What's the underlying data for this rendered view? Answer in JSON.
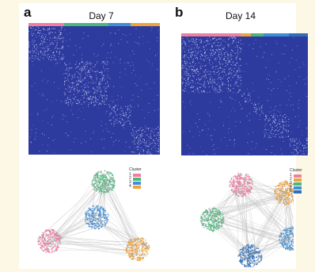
{
  "panels": [
    {
      "letter": "a",
      "title": "Day 7",
      "legend_title": "Cluster",
      "clusters": [
        {
          "label": "1",
          "color": "#ef7fa0"
        },
        {
          "label": "2",
          "color": "#4bb87a"
        },
        {
          "label": "3",
          "color": "#3f8fd6"
        },
        {
          "label": "4",
          "color": "#f2a23a"
        }
      ],
      "cluster_bar_fractions": [
        0.27,
        0.34,
        0.17,
        0.22
      ]
    },
    {
      "letter": "b",
      "title": "Day 14",
      "legend_title": "Cluster",
      "clusters": [
        {
          "label": "1",
          "color": "#ef7fa0"
        },
        {
          "label": "2",
          "color": "#f2a23a"
        },
        {
          "label": "3",
          "color": "#4bb87a"
        },
        {
          "label": "4",
          "color": "#3f8fd6"
        },
        {
          "label": "5",
          "color": "#2f6fb8"
        }
      ],
      "cluster_bar_fractions": [
        0.47,
        0.08,
        0.1,
        0.2,
        0.15
      ]
    }
  ],
  "colors": {
    "heatmap_background": "#2d3a9e",
    "heatmap_speckle": "#dfe3ff",
    "edge": "#8a8a8a"
  }
}
